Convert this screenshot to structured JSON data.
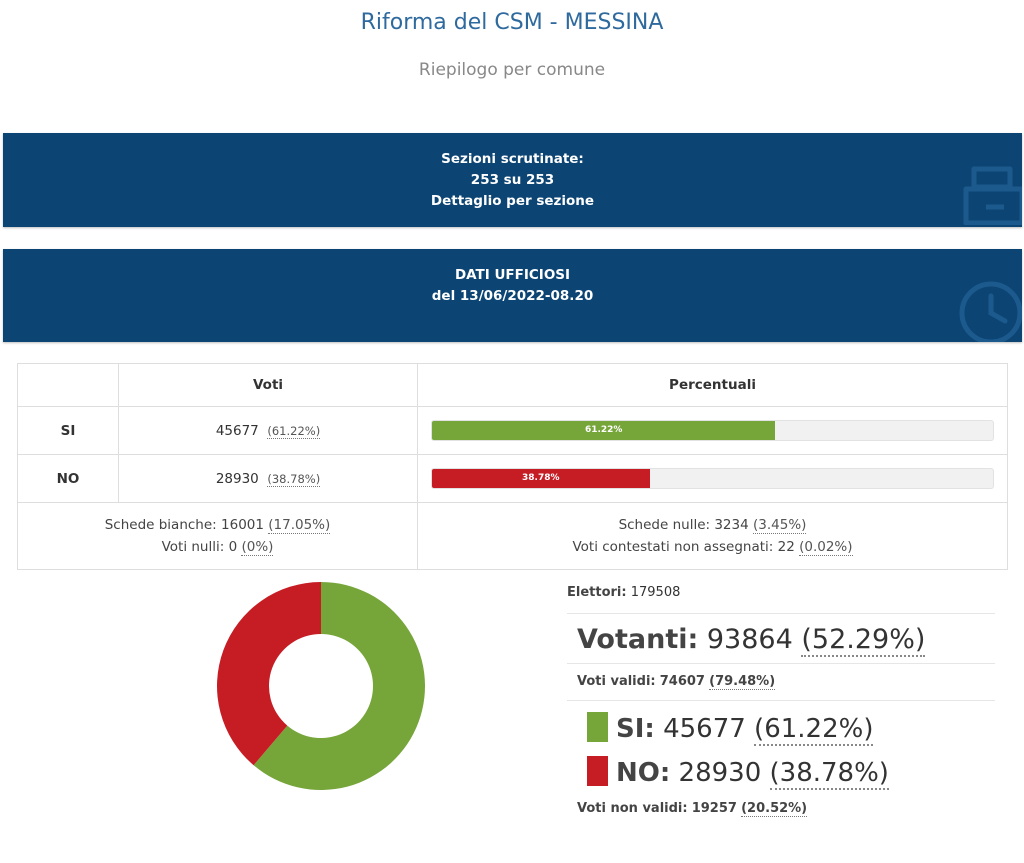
{
  "header": {
    "title": "Riforma del CSM - MESSINA",
    "subtitle": "Riepilogo per comune"
  },
  "scrutinio": {
    "label": "Sezioni scrutinate:",
    "count": "253 su 253",
    "link": "Dettaglio per sezione",
    "icon": "ballot-box-icon"
  },
  "dati": {
    "label": "DATI UFFICIOSI",
    "timestamp": "del 13/06/2022-08.20",
    "icon": "clock-icon"
  },
  "table": {
    "headers": {
      "blank": "",
      "votes": "Voti",
      "percent": "Percentuali"
    },
    "rows": [
      {
        "label": "SI",
        "votes": "45677",
        "pct": "(61.22%)",
        "bar_text": "61.22%",
        "fraction": 0.6122,
        "color": "#76a53a"
      },
      {
        "label": "NO",
        "votes": "28930",
        "pct": "(38.78%)",
        "bar_text": "38.78%",
        "fraction": 0.3878,
        "color": "#c61d25"
      }
    ],
    "summary_left": {
      "bianche_label": "Schede bianche: ",
      "bianche_value": "16001",
      "bianche_pct": "(17.05%)",
      "nulli_label": "Voti nulli: ",
      "nulli_value": "0",
      "nulli_pct": "(0%)"
    },
    "summary_right": {
      "nulle_label": "Schede nulle: ",
      "nulle_value": "3234",
      "nulle_pct": "(3.45%)",
      "contestati_label": "Voti contestati non assegnati: ",
      "contestati_value": "22",
      "contestati_pct": "(0.02%)"
    }
  },
  "stats": {
    "elettori_label": "Elettori:",
    "elettori_value": "179508",
    "votanti_label": "Votanti:",
    "votanti_value": "93864",
    "votanti_pct": "(52.29%)",
    "validi_label": "Voti validi:",
    "validi_value": "74607",
    "validi_pct": "(79.48%)",
    "si_label": "SI:",
    "si_value": "45677",
    "si_pct": "(61.22%)",
    "no_label": "NO:",
    "no_value": "28930",
    "no_pct": "(38.78%)",
    "non_validi_label": "Voti non validi:",
    "non_validi_value": "19257",
    "non_validi_pct": "(20.52%)"
  },
  "donut": {
    "si_fraction": 0.6122,
    "no_fraction": 0.3878,
    "si_color": "#76a53a",
    "no_color": "#c61d25"
  }
}
